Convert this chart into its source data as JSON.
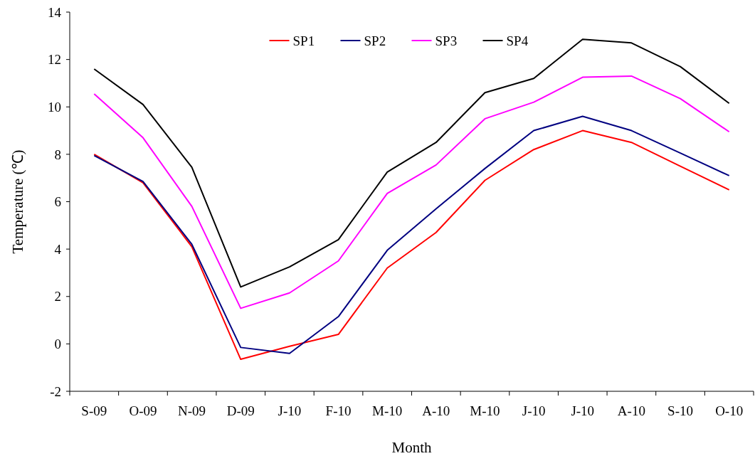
{
  "chart_data": {
    "type": "line",
    "xlabel": "Month",
    "ylabel": "Temperature (℃)",
    "categories": [
      "S-09",
      "O-09",
      "N-09",
      "D-09",
      "J-10",
      "F-10",
      "M-10",
      "A-10",
      "M-10",
      "J-10",
      "J-10",
      "A-10",
      "S-10",
      "O-10"
    ],
    "ylim": [
      -2,
      14
    ],
    "yticks": [
      -2,
      0,
      2,
      4,
      6,
      8,
      10,
      12,
      14
    ],
    "grid": false,
    "legend": "top",
    "marker": "none",
    "line_style": "solid",
    "series": [
      {
        "name": "SP1",
        "color": "#ff0000",
        "values": [
          8.0,
          6.8,
          4.1,
          -0.65,
          -0.1,
          0.4,
          3.2,
          4.7,
          6.9,
          8.2,
          9.0,
          8.5,
          7.5,
          6.5
        ]
      },
      {
        "name": "SP2",
        "color": "#000080",
        "values": [
          7.95,
          6.85,
          4.2,
          -0.15,
          -0.4,
          1.15,
          3.95,
          5.7,
          7.4,
          9.0,
          9.6,
          9.0,
          8.05,
          7.1
        ]
      },
      {
        "name": "SP3",
        "color": "#ff00ff",
        "values": [
          10.55,
          8.7,
          5.8,
          1.5,
          2.15,
          3.5,
          6.35,
          7.55,
          9.5,
          10.2,
          11.25,
          11.3,
          10.35,
          8.95
        ]
      },
      {
        "name": "SP4",
        "color": "#000000",
        "values": [
          11.6,
          10.1,
          7.45,
          2.4,
          3.25,
          4.4,
          7.25,
          8.5,
          10.6,
          11.2,
          12.85,
          12.7,
          11.7,
          10.15
        ]
      }
    ]
  }
}
